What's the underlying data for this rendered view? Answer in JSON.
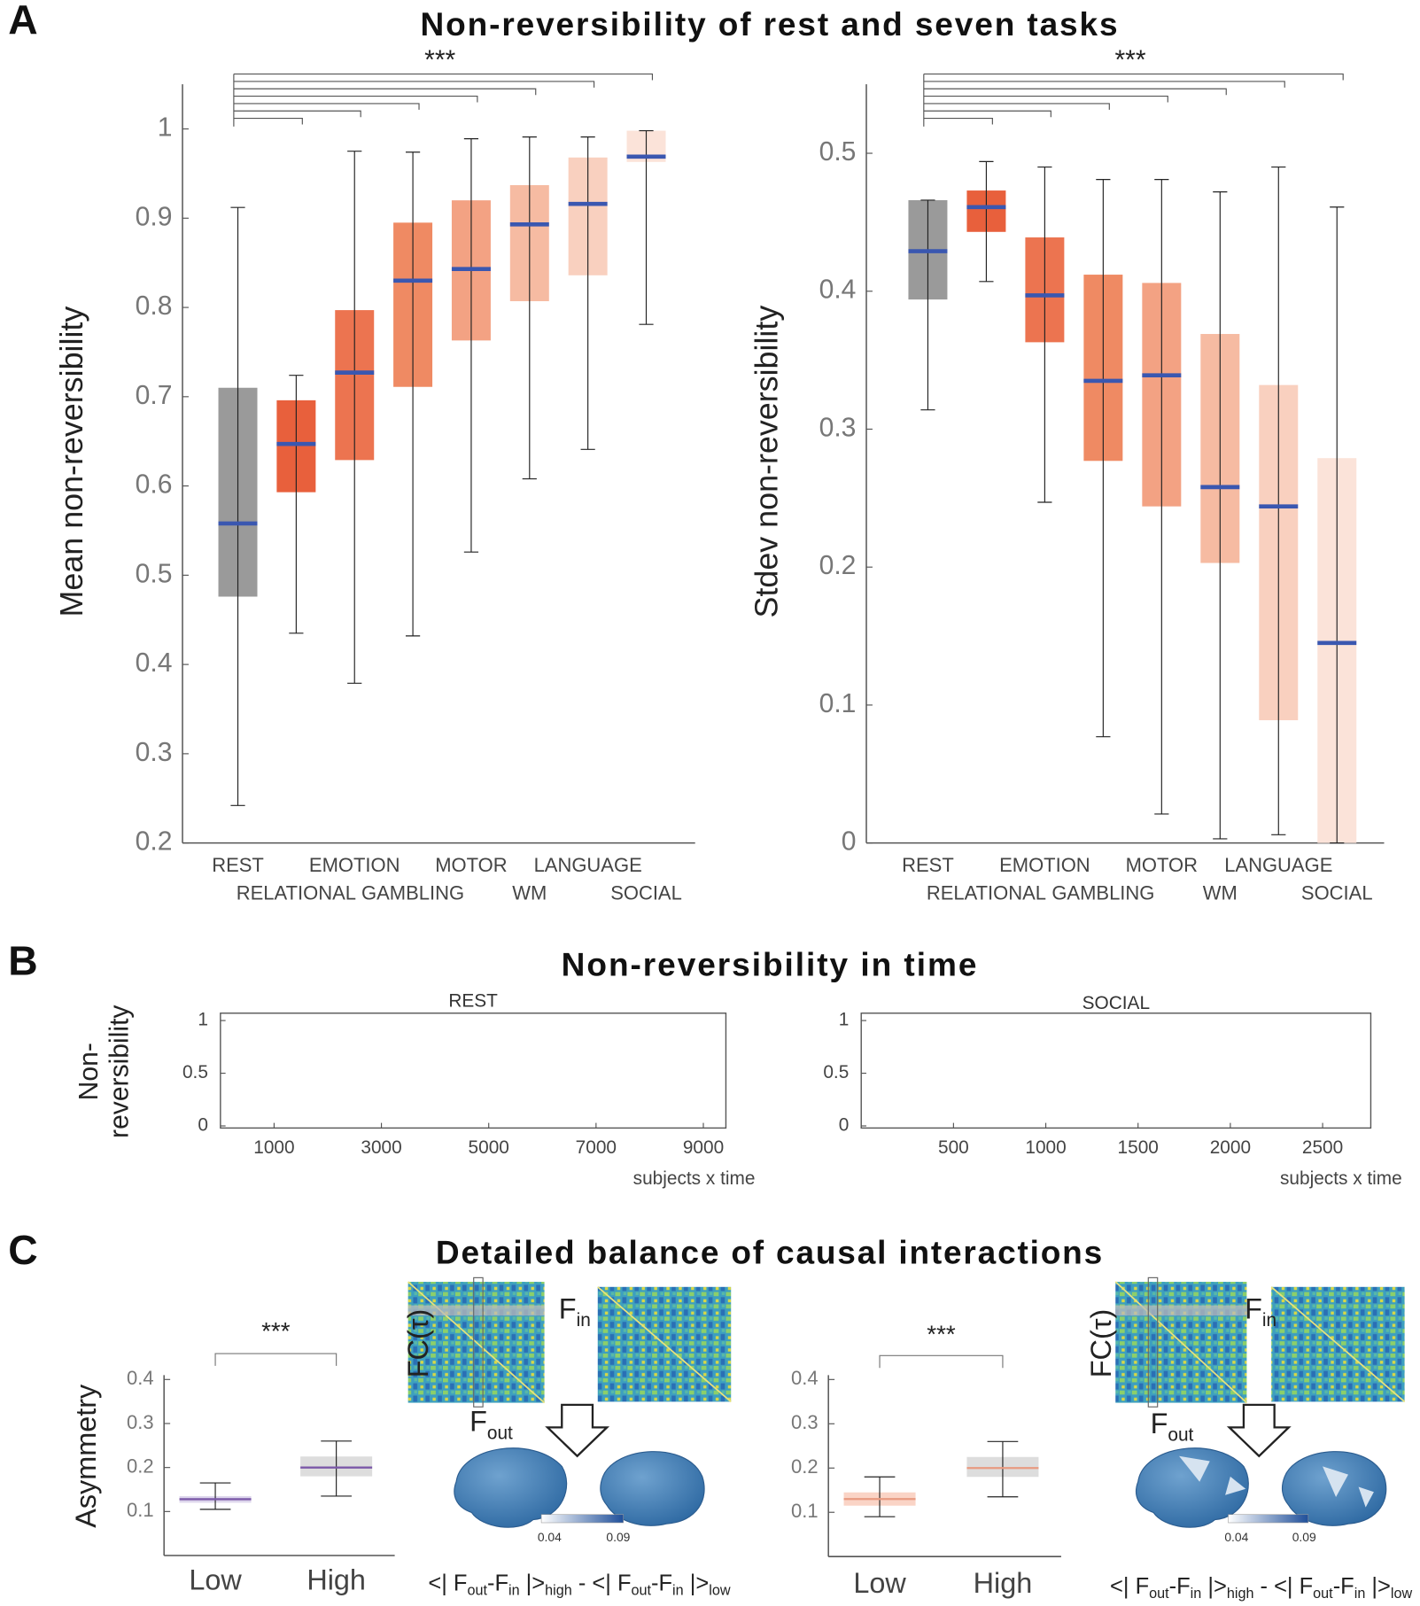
{
  "panel_labels": [
    "A",
    "B",
    "C"
  ],
  "panel_titles": [
    "Non-reversibility of rest and seven tasks",
    "Non-reversibility in time",
    "Detailed balance of causal interactions"
  ],
  "chart_data": [
    {
      "type": "box",
      "ylabel": "Mean non-reversibility",
      "annotation": "***",
      "categories": [
        "REST",
        "RELATIONAL",
        "EMOTION",
        "GAMBLING",
        "MOTOR",
        "WM",
        "LANGUAGE",
        "SOCIAL"
      ],
      "colors": [
        "#9a9a9a",
        "#e8603c",
        "#ec7450",
        "#ef8a63",
        "#f3a283",
        "#f6bba2",
        "#f9d0bf",
        "#fbe3d9"
      ],
      "median_color": "#3a57b0",
      "boxes": [
        {
          "whisker_low": 0.242,
          "q1": 0.476,
          "median": 0.558,
          "q3": 0.71,
          "whisker_high": 0.912
        },
        {
          "whisker_low": 0.435,
          "q1": 0.593,
          "median": 0.647,
          "q3": 0.696,
          "whisker_high": 0.724
        },
        {
          "whisker_low": 0.379,
          "q1": 0.629,
          "median": 0.727,
          "q3": 0.797,
          "whisker_high": 0.975
        },
        {
          "whisker_low": 0.432,
          "q1": 0.711,
          "median": 0.83,
          "q3": 0.895,
          "whisker_high": 0.974
        },
        {
          "whisker_low": 0.526,
          "q1": 0.763,
          "median": 0.843,
          "q3": 0.92,
          "whisker_high": 0.989
        },
        {
          "whisker_low": 0.608,
          "q1": 0.807,
          "median": 0.893,
          "q3": 0.937,
          "whisker_high": 0.991
        },
        {
          "whisker_low": 0.641,
          "q1": 0.836,
          "median": 0.916,
          "q3": 0.968,
          "whisker_high": 0.991
        },
        {
          "whisker_low": 0.781,
          "q1": 0.963,
          "median": 0.969,
          "q3": 0.998,
          "whisker_high": 0.998
        }
      ],
      "ylim": [
        0.2,
        1.05
      ],
      "yticks": [
        0.2,
        0.3,
        0.4,
        0.5,
        0.6,
        0.7,
        0.8,
        0.9,
        1
      ]
    },
    {
      "type": "box",
      "ylabel": "Stdev non-reversibility",
      "annotation": "***",
      "categories": [
        "REST",
        "RELATIONAL",
        "EMOTION",
        "GAMBLING",
        "MOTOR",
        "WM",
        "LANGUAGE",
        "SOCIAL"
      ],
      "colors": [
        "#9a9a9a",
        "#e8603c",
        "#ec7450",
        "#ef8a63",
        "#f3a283",
        "#f6bba2",
        "#f9d0bf",
        "#fbe3d9"
      ],
      "median_color": "#3a57b0",
      "boxes": [
        {
          "whisker_low": 0.314,
          "q1": 0.394,
          "median": 0.429,
          "q3": 0.466,
          "whisker_high": 0.466
        },
        {
          "whisker_low": 0.407,
          "q1": 0.443,
          "median": 0.461,
          "q3": 0.473,
          "whisker_high": 0.494
        },
        {
          "whisker_low": 0.247,
          "q1": 0.363,
          "median": 0.397,
          "q3": 0.439,
          "whisker_high": 0.49
        },
        {
          "whisker_low": 0.077,
          "q1": 0.277,
          "median": 0.335,
          "q3": 0.412,
          "whisker_high": 0.481
        },
        {
          "whisker_low": 0.021,
          "q1": 0.244,
          "median": 0.339,
          "q3": 0.406,
          "whisker_high": 0.481
        },
        {
          "whisker_low": 0.003,
          "q1": 0.203,
          "median": 0.258,
          "q3": 0.369,
          "whisker_high": 0.472
        },
        {
          "whisker_low": 0.006,
          "q1": 0.089,
          "median": 0.244,
          "q3": 0.332,
          "whisker_high": 0.49
        },
        {
          "whisker_low": 0,
          "q1": 0,
          "median": 0.145,
          "q3": 0.279,
          "whisker_high": 0.461
        }
      ],
      "ylim": [
        0,
        0.55
      ],
      "yticks": [
        0,
        0.1,
        0.2,
        0.3,
        0.4,
        0.5
      ]
    },
    {
      "type": "scatter",
      "title": "REST",
      "ylabel": [
        "Non-",
        "reversibility"
      ],
      "xlabel": "subjects x time",
      "xlim": [
        0,
        9420
      ],
      "xticks": [
        1000,
        3000,
        5000,
        7000,
        9000
      ],
      "ylim": [
        -0.02,
        1.07
      ],
      "yticks": [
        0,
        0.5,
        1
      ]
    },
    {
      "type": "scatter",
      "title": "SOCIAL",
      "xlabel": "subjects x time",
      "xlim": [
        0,
        2761
      ],
      "xticks": [
        500,
        1000,
        1500,
        2000,
        2500
      ],
      "ylim": [
        -0.02,
        1.07
      ],
      "yticks": [
        0,
        0.5,
        1
      ]
    },
    {
      "type": "box",
      "ylabel": "Asymmetry",
      "annotation": "***",
      "categories": [
        "Low",
        "High"
      ],
      "colors": [
        "#ddd6ec",
        "#dddddd"
      ],
      "median_color": "#7b59a8",
      "boxes": [
        {
          "whisker_low": 0.105,
          "q1": 0.12,
          "median": 0.128,
          "q3": 0.135,
          "whisker_high": 0.165
        },
        {
          "whisker_low": 0.135,
          "q1": 0.18,
          "median": 0.2,
          "q3": 0.225,
          "whisker_high": 0.26
        }
      ],
      "ylim": [
        0,
        0.41
      ],
      "yticks": [
        0.1,
        0.2,
        0.3,
        0.4
      ]
    },
    {
      "type": "box",
      "annotation": "***",
      "categories": [
        "Low",
        "High"
      ],
      "colors": [
        "#fad4c6",
        "#dddddd"
      ],
      "median_color": "#e89a80",
      "boxes": [
        {
          "whisker_low": 0.09,
          "q1": 0.115,
          "median": 0.13,
          "q3": 0.145,
          "whisker_high": 0.18
        },
        {
          "whisker_low": 0.135,
          "q1": 0.18,
          "median": 0.2,
          "q3": 0.225,
          "whisker_high": 0.26
        }
      ],
      "ylim": [
        0,
        0.41
      ],
      "yticks": [
        0.1,
        0.2,
        0.3,
        0.4
      ]
    }
  ],
  "panel_c": [
    {
      "fc_label": "FC(τ)",
      "f_in": [
        "F",
        "in"
      ],
      "f_out": [
        "F",
        "out"
      ],
      "colorbar_ticks": [
        0.04,
        0.09
      ],
      "formula": [
        "<| F",
        "out",
        "-F",
        "in",
        " |>",
        "high",
        " - <| F",
        "out",
        "-F",
        "in",
        " |>",
        "low"
      ]
    },
    {
      "fc_label": "FC(τ)",
      "f_in": [
        "F",
        "in"
      ],
      "f_out": [
        "F",
        "out"
      ],
      "colorbar_ticks": [
        0.04,
        0.09
      ],
      "formula": [
        "<| F",
        "out",
        "-F",
        "in",
        " |>",
        "high",
        " - <| F",
        "out",
        "-F",
        "in",
        " |>",
        "low"
      ]
    }
  ]
}
